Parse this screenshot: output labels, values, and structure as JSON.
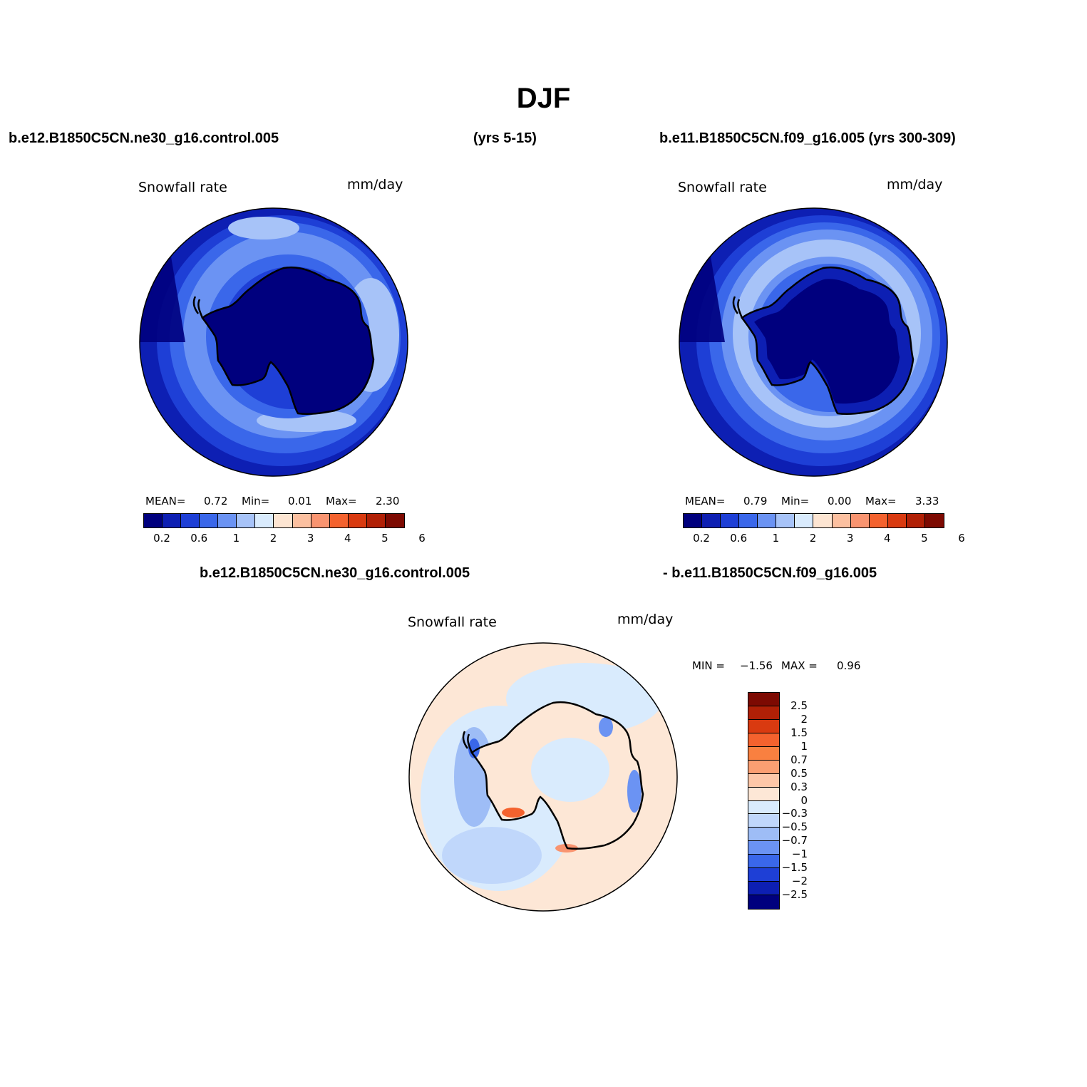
{
  "figure": {
    "title": "DJF",
    "case1_name": "b.e12.B1850C5CN.ne30_g16.control.005",
    "case1_years": "(yrs 5-15)",
    "case2_label": "b.e11.B1850C5CN.f09_g16.005 (yrs 300-309)",
    "diff_left": "b.e12.B1850C5CN.ne30_g16.control.005",
    "diff_right": "- b.e11.B1850C5CN.f09_g16.005"
  },
  "panels": {
    "left": {
      "field": "Snowfall rate",
      "units": "mm/day",
      "mean_label": "MEAN=",
      "mean": "0.72",
      "min_label": "Min=",
      "min": "0.01",
      "max_label": "Max=",
      "max": "2.30"
    },
    "right": {
      "field": "Snowfall rate",
      "units": "mm/day",
      "mean_label": "MEAN=",
      "mean": "0.79",
      "min_label": "Min=",
      "min": "0.00",
      "max_label": "Max=",
      "max": "3.33"
    },
    "diff": {
      "field": "Snowfall rate",
      "units": "mm/day",
      "min_label": "MIN =",
      "min": "−1.56",
      "max_label": "MAX =",
      "max": "0.96"
    }
  },
  "colorbars": {
    "abs_colors": [
      "#00007e",
      "#0d1fb3",
      "#1e3fd6",
      "#3a67ea",
      "#6b93f3",
      "#a7c3f8",
      "#d9ebfd",
      "#fde5d2",
      "#fcc0a0",
      "#f99470",
      "#f4622e",
      "#d93a10",
      "#b12006",
      "#7d0a02"
    ],
    "abs_ticks": [
      "0.2",
      "0.6",
      "1",
      "2",
      "3",
      "4",
      "5",
      "6"
    ],
    "diff_colors": [
      "#7d0a02",
      "#b12006",
      "#d93a10",
      "#f4622e",
      "#f98040",
      "#fb9f72",
      "#fdc7a8",
      "#fde7d6",
      "#d9ebfd",
      "#c0d7fb",
      "#9ebdf6",
      "#6b93f3",
      "#3a67ea",
      "#1e3fd6",
      "#0d1fb3",
      "#00007e"
    ],
    "diff_ticks": [
      "2.5",
      "2",
      "1.5",
      "1",
      "0.7",
      "0.5",
      "0.3",
      "0",
      "−0.3",
      "−0.5",
      "−0.7",
      "−1",
      "−1.5",
      "−2",
      "−2.5"
    ]
  }
}
